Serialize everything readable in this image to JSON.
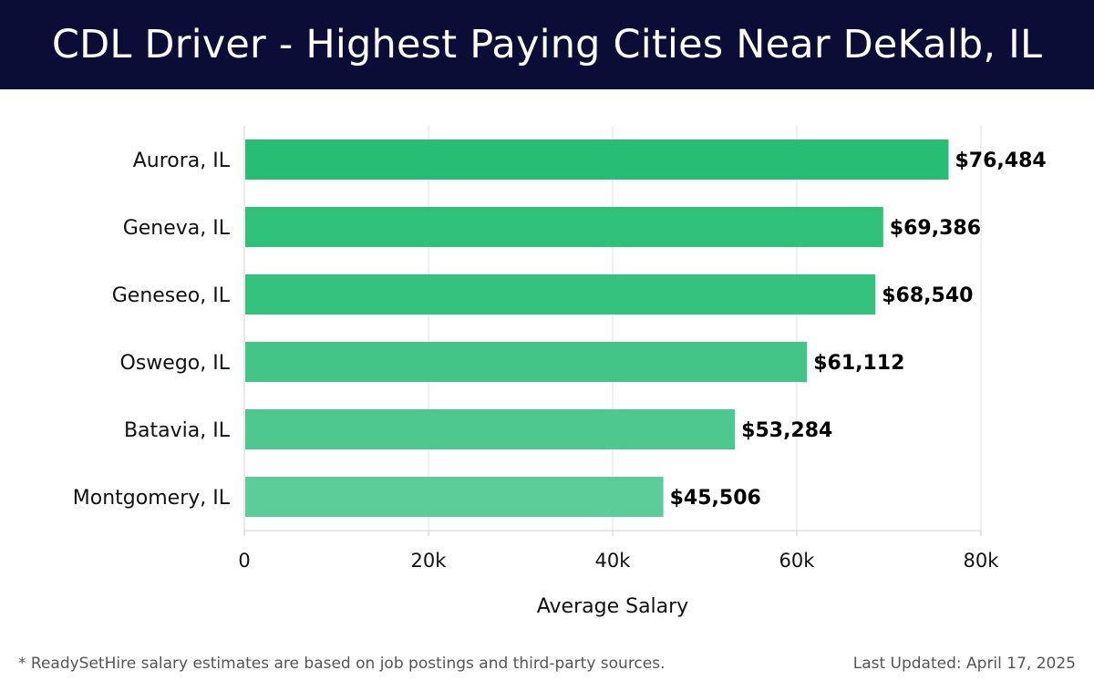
{
  "header": {
    "title": "CDL Driver - Highest Paying Cities Near DeKalb, IL"
  },
  "footer": {
    "note": "* ReadySetHire salary estimates are based on job postings and third-party sources.",
    "updated": "Last Updated: April 17, 2025"
  },
  "colors": {
    "header_bg": "#0b0d36",
    "bar_colors": [
      "#27bd74",
      "#2fc07a",
      "#34c27e",
      "#42c587",
      "#4ec88f",
      "#5ccd99"
    ]
  },
  "chart_data": {
    "type": "bar",
    "orientation": "horizontal",
    "title": "CDL Driver - Highest Paying Cities Near DeKalb, IL",
    "xlabel": "Average Salary",
    "ylabel": "",
    "categories": [
      "Aurora, IL",
      "Geneva, IL",
      "Geneseo, IL",
      "Oswego, IL",
      "Batavia, IL",
      "Montgomery, IL"
    ],
    "values": [
      76484,
      69386,
      68540,
      61112,
      53284,
      45506
    ],
    "value_labels": [
      "$76,484",
      "$69,386",
      "$68,540",
      "$61,112",
      "$53,284",
      "$45,506"
    ],
    "xlim": [
      0,
      80000
    ],
    "x_ticks": [
      0,
      20000,
      40000,
      60000,
      80000
    ],
    "x_tick_labels": [
      "0",
      "20k",
      "40k",
      "60k",
      "80k"
    ],
    "grid": true,
    "legend": "none"
  }
}
